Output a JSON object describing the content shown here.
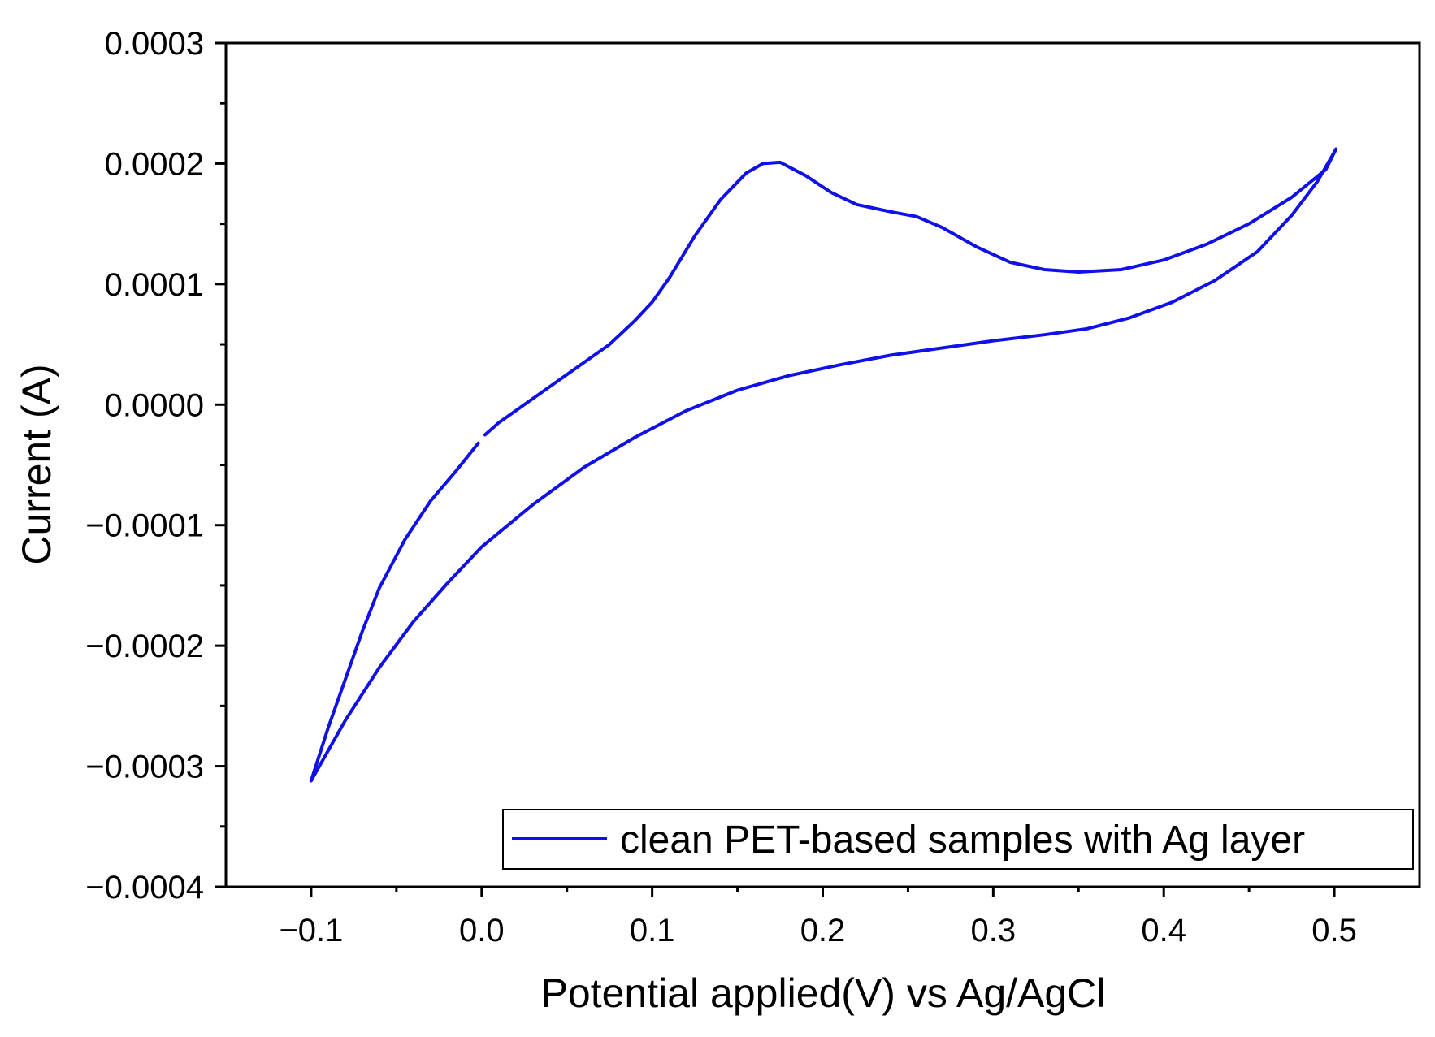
{
  "chart_data": {
    "type": "line",
    "title": "",
    "xlabel": "Potential  applied(V) vs  Ag/AgCl",
    "ylabel": "Current (A)",
    "xlim": [
      -0.15,
      0.55
    ],
    "ylim": [
      -0.0004,
      0.0003
    ],
    "grid": false,
    "legend_position": "bottom-right",
    "x_ticks": [
      -0.1,
      0.0,
      0.1,
      0.2,
      0.3,
      0.4,
      0.5
    ],
    "x_tick_labels": [
      "−0.1",
      "0.0",
      "0.1",
      "0.2",
      "0.3",
      "0.4",
      "0.5"
    ],
    "y_ticks": [
      0.0003,
      0.0002,
      0.0001,
      0.0,
      -0.0001,
      -0.0002,
      -0.0003,
      -0.0004
    ],
    "y_tick_labels": [
      "0.0003",
      "0.0002",
      "0.0001",
      "0.0000",
      "−0.0001",
      "−0.0002",
      "−0.0003",
      "−0.0004"
    ],
    "series": [
      {
        "name": "clean PET-based samples with  Ag layer",
        "color": "#1010e8",
        "segments": [
          [
            [
              0.002,
              -2.5e-05
            ],
            [
              0.01,
              -1.5e-05
            ],
            [
              0.025,
              0.0
            ],
            [
              0.05,
              2.5e-05
            ],
            [
              0.075,
              5e-05
            ],
            [
              0.09,
              7e-05
            ],
            [
              0.1,
              8.5e-05
            ],
            [
              0.11,
              0.000105
            ],
            [
              0.125,
              0.00014
            ],
            [
              0.14,
              0.00017
            ],
            [
              0.155,
              0.000192
            ],
            [
              0.165,
              0.0002
            ],
            [
              0.175,
              0.000201
            ],
            [
              0.19,
              0.00019
            ],
            [
              0.205,
              0.000176
            ],
            [
              0.22,
              0.000166
            ],
            [
              0.24,
              0.00016
            ],
            [
              0.255,
              0.000156
            ],
            [
              0.27,
              0.000147
            ],
            [
              0.29,
              0.000131
            ],
            [
              0.31,
              0.000118
            ],
            [
              0.33,
              0.000112
            ],
            [
              0.35,
              0.00011
            ],
            [
              0.375,
              0.000112
            ],
            [
              0.4,
              0.00012
            ],
            [
              0.425,
              0.000133
            ],
            [
              0.45,
              0.00015
            ],
            [
              0.475,
              0.000172
            ],
            [
              0.495,
              0.000195
            ],
            [
              0.501,
              0.000212
            ]
          ],
          [
            [
              0.501,
              0.000212
            ],
            [
              0.49,
              0.000185
            ],
            [
              0.475,
              0.000157
            ],
            [
              0.455,
              0.000127
            ],
            [
              0.43,
              0.000103
            ],
            [
              0.405,
              8.5e-05
            ],
            [
              0.38,
              7.2e-05
            ],
            [
              0.355,
              6.3e-05
            ],
            [
              0.33,
              5.8e-05
            ],
            [
              0.3,
              5.3e-05
            ],
            [
              0.27,
              4.7e-05
            ],
            [
              0.24,
              4.1e-05
            ],
            [
              0.21,
              3.3e-05
            ],
            [
              0.18,
              2.4e-05
            ],
            [
              0.15,
              1.2e-05
            ],
            [
              0.12,
              -5e-06
            ],
            [
              0.09,
              -2.7e-05
            ],
            [
              0.06,
              -5.2e-05
            ],
            [
              0.03,
              -8.3e-05
            ],
            [
              0.0,
              -0.000118
            ],
            [
              -0.02,
              -0.000148
            ],
            [
              -0.04,
              -0.00018
            ],
            [
              -0.06,
              -0.000218
            ],
            [
              -0.08,
              -0.000262
            ],
            [
              -0.1,
              -0.000312
            ]
          ],
          [
            [
              -0.1,
              -0.000312
            ],
            [
              -0.09,
              -0.000268
            ],
            [
              -0.08,
              -0.000228
            ],
            [
              -0.07,
              -0.000188
            ],
            [
              -0.06,
              -0.000152
            ],
            [
              -0.045,
              -0.000112
            ],
            [
              -0.03,
              -8e-05
            ],
            [
              -0.015,
              -5.5e-05
            ],
            [
              -0.002,
              -3.2e-05
            ]
          ]
        ]
      }
    ]
  }
}
